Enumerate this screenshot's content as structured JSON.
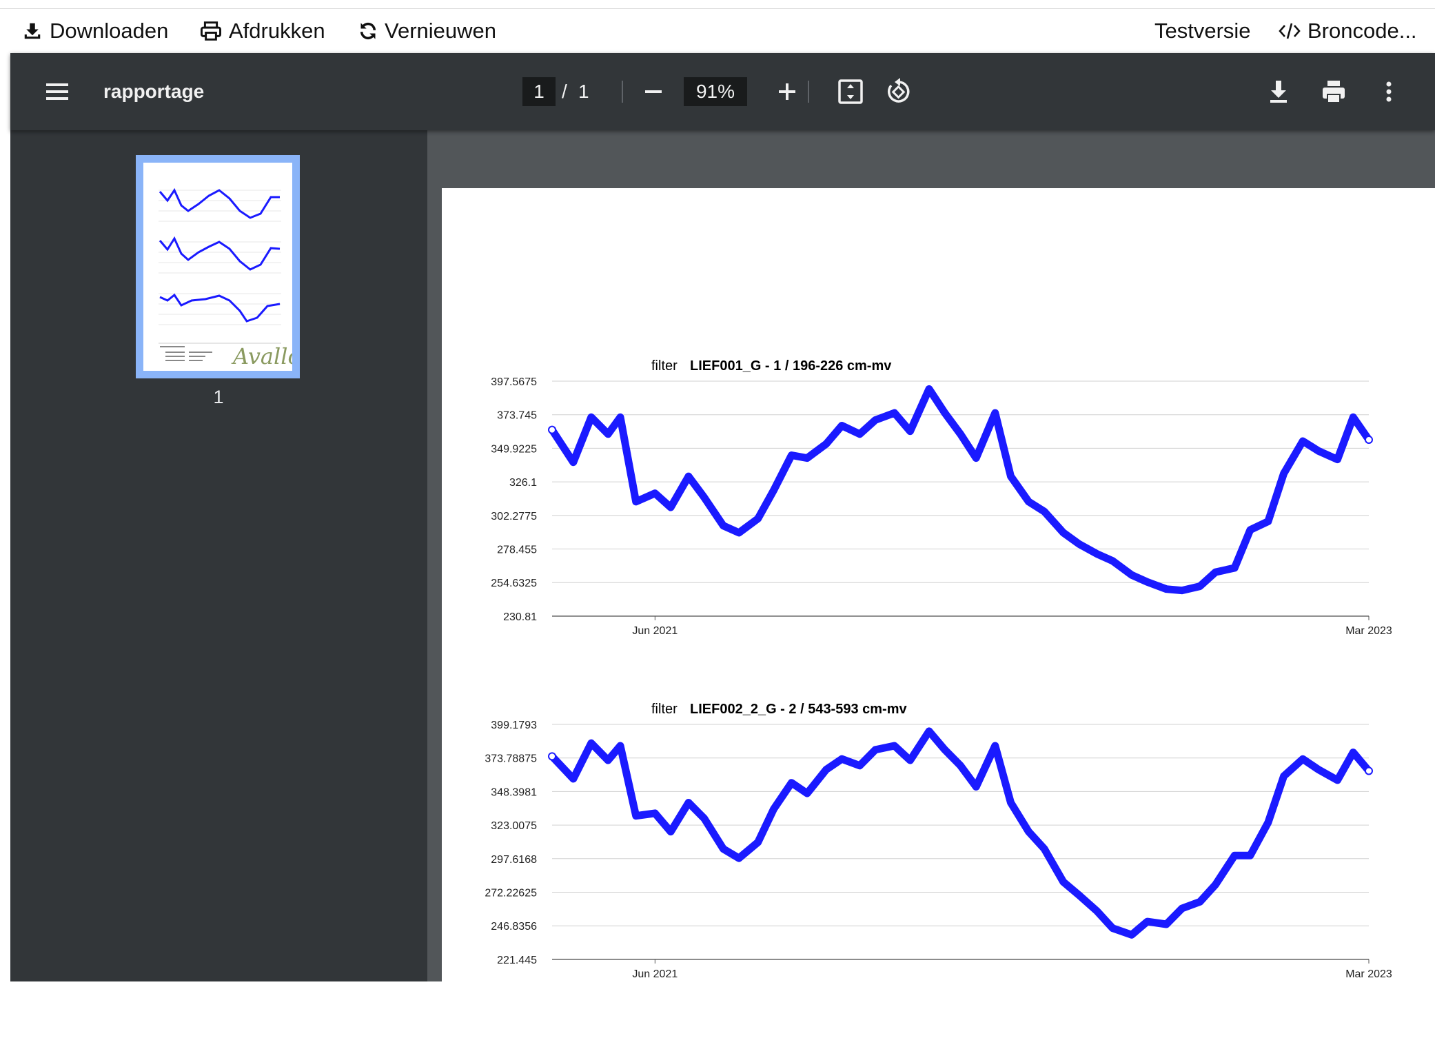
{
  "app_toolbar": {
    "download_label": "Downloaden",
    "print_label": "Afdrukken",
    "refresh_label": "Vernieuwen",
    "test_label": "Testversie",
    "source_label": "Broncode..."
  },
  "viewer": {
    "doc_title": "rapportage",
    "current_page": "1",
    "page_sep": "/",
    "total_pages": "1",
    "zoom": "91%",
    "thumbnail_page_label": "1",
    "thumb_signature_text": "Avallo"
  },
  "colors": {
    "series": "#1a1aff",
    "toolbar_bg": "#323639",
    "viewer_bg": "#525659",
    "thumb_highlight": "#8ab4f8"
  },
  "icons": [
    "download-icon",
    "printer-icon",
    "refresh-icon",
    "code-icon",
    "hamburger-menu-icon",
    "zoom-out-icon",
    "zoom-in-icon",
    "fit-page-icon",
    "rotate-icon",
    "pdf-download-icon",
    "pdf-print-icon",
    "more-vert-icon"
  ],
  "chart_data": [
    {
      "type": "line",
      "title_prefix": "filter",
      "title": "LIEF001_G - 1 / 196-226 cm-mv",
      "yticks": [
        "397.5675",
        "373.745",
        "349.9225",
        "326.1",
        "302.2775",
        "278.455",
        "254.6325",
        "230.81"
      ],
      "ylim": [
        230.81,
        397.5675
      ],
      "xticks": [
        "Jun 2021",
        "Mar 2023"
      ],
      "xlim": [
        "2021-03-01",
        "2023-03-01"
      ],
      "grid": true,
      "x": [
        "2021-03-01",
        "2021-03-20",
        "2021-04-05",
        "2021-04-20",
        "2021-05-01",
        "2021-05-15",
        "2021-06-01",
        "2021-06-15",
        "2021-07-01",
        "2021-07-15",
        "2021-08-01",
        "2021-08-15",
        "2021-09-01",
        "2021-09-15",
        "2021-10-01",
        "2021-10-15",
        "2021-11-01",
        "2021-11-15",
        "2021-12-01",
        "2021-12-15",
        "2022-01-01",
        "2022-01-15",
        "2022-02-01",
        "2022-02-15",
        "2022-03-01",
        "2022-03-15",
        "2022-04-01",
        "2022-04-15",
        "2022-05-01",
        "2022-05-15",
        "2022-06-01",
        "2022-06-15",
        "2022-07-01",
        "2022-07-15",
        "2022-08-01",
        "2022-08-15",
        "2022-09-01",
        "2022-09-15",
        "2022-10-01",
        "2022-10-15",
        "2022-11-01",
        "2022-11-15",
        "2022-12-01",
        "2022-12-15",
        "2023-01-01",
        "2023-01-15",
        "2023-02-01",
        "2023-02-15",
        "2023-03-01"
      ],
      "values": [
        363,
        340,
        372,
        360,
        372,
        312,
        318,
        308,
        330,
        315,
        295,
        290,
        300,
        320,
        345,
        343,
        353,
        366,
        360,
        370,
        375,
        362,
        392,
        375,
        360,
        343,
        375,
        330,
        312,
        305,
        290,
        282,
        275,
        270,
        260,
        255,
        250,
        249,
        252,
        262,
        265,
        292,
        298,
        332,
        355,
        348,
        342,
        372,
        356
      ]
    },
    {
      "type": "line",
      "title_prefix": "filter",
      "title": "LIEF002_2_G - 2 / 543-593 cm-mv",
      "yticks": [
        "399.1793",
        "373.78875",
        "348.3981",
        "323.0075",
        "297.6168",
        "272.22625",
        "246.8356",
        "221.445"
      ],
      "ylim": [
        221.445,
        399.1793
      ],
      "xticks": [
        "Jun 2021",
        "Mar 2023"
      ],
      "xlim": [
        "2021-03-01",
        "2023-03-01"
      ],
      "grid": true,
      "x": [
        "2021-03-01",
        "2021-03-20",
        "2021-04-05",
        "2021-04-20",
        "2021-05-01",
        "2021-05-15",
        "2021-06-01",
        "2021-06-15",
        "2021-07-01",
        "2021-07-15",
        "2021-08-01",
        "2021-08-15",
        "2021-09-01",
        "2021-09-15",
        "2021-10-01",
        "2021-10-15",
        "2021-11-01",
        "2021-11-15",
        "2021-12-01",
        "2021-12-15",
        "2022-01-01",
        "2022-01-15",
        "2022-02-01",
        "2022-02-15",
        "2022-03-01",
        "2022-03-15",
        "2022-04-01",
        "2022-04-15",
        "2022-05-01",
        "2022-05-15",
        "2022-06-01",
        "2022-06-15",
        "2022-07-01",
        "2022-07-15",
        "2022-08-01",
        "2022-08-15",
        "2022-09-01",
        "2022-09-15",
        "2022-10-01",
        "2022-10-15",
        "2022-11-01",
        "2022-11-15",
        "2022-12-01",
        "2022-12-15",
        "2023-01-01",
        "2023-01-15",
        "2023-02-01",
        "2023-02-15",
        "2023-03-01"
      ],
      "values": [
        375,
        358,
        385,
        372,
        383,
        330,
        332,
        318,
        340,
        328,
        305,
        298,
        310,
        335,
        355,
        347,
        365,
        373,
        368,
        380,
        383,
        372,
        394,
        380,
        368,
        352,
        383,
        340,
        318,
        305,
        280,
        270,
        258,
        245,
        240,
        250,
        248,
        260,
        265,
        278,
        300,
        300,
        325,
        360,
        373,
        365,
        357,
        378,
        364
      ]
    }
  ]
}
